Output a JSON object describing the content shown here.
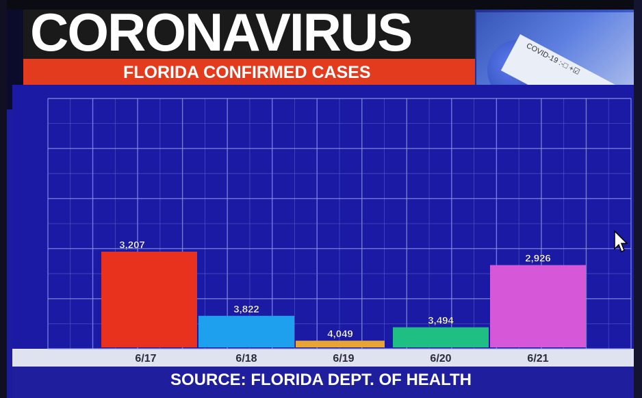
{
  "banner": {
    "title": "CORONAVIRUS",
    "subtitle": "FLORIDA CONFIRMED CASES",
    "photo_label": "COVID-19 :-□ +☑"
  },
  "footer": {
    "source": "SOURCE: FLORIDA DEPT. OF HEALTH"
  },
  "chart_data": {
    "type": "bar",
    "categories": [
      "6/17",
      "6/18",
      "6/19",
      "6/20",
      "6/21"
    ],
    "values": [
      3207,
      3822,
      4049,
      3494,
      2926
    ],
    "labels": [
      "3,207",
      "3,822",
      "4,049",
      "3,494",
      "2,926"
    ],
    "bar_heights_relative": [
      1.0,
      0.33,
      0.07,
      0.21,
      0.86
    ],
    "colors": [
      "#e8321e",
      "#1fa0ef",
      "#e8a534",
      "#1fbf84",
      "#d657d8"
    ],
    "grid": true,
    "title": "FLORIDA CONFIRMED CASES",
    "xlabel": "",
    "ylabel": ""
  }
}
